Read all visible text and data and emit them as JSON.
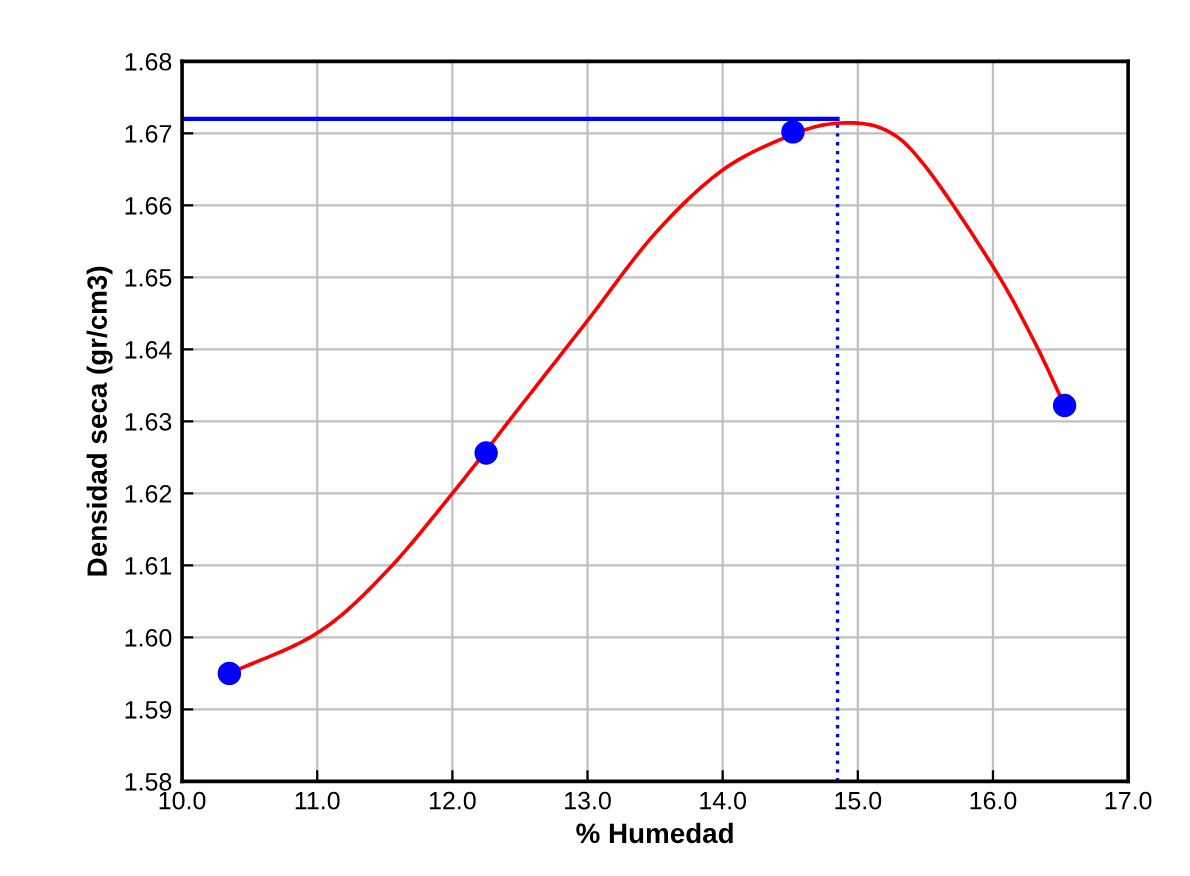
{
  "chart_data": {
    "type": "scatter",
    "xlabel": "% Humedad",
    "ylabel": "Densidad seca (gr/cm3)",
    "xlim": [
      10,
      17
    ],
    "xticks": [
      {
        "value": 10,
        "label": "10.0"
      },
      {
        "value": 11,
        "label": "11.0"
      },
      {
        "value": 12,
        "label": "12.0"
      },
      {
        "value": 13,
        "label": "13.0"
      },
      {
        "value": 14,
        "label": "14.0"
      },
      {
        "value": 15,
        "label": "15.0"
      },
      {
        "value": 16,
        "label": "16.0"
      },
      {
        "value": 17,
        "label": "17.0"
      }
    ],
    "ylim": [
      1.58,
      1.68
    ],
    "yticks": [
      {
        "value": 1.58,
        "label": "1.58"
      },
      {
        "value": 1.59,
        "label": "1.59"
      },
      {
        "value": 1.6,
        "label": "1.60"
      },
      {
        "value": 1.61,
        "label": "1.61"
      },
      {
        "value": 1.62,
        "label": "1.62"
      },
      {
        "value": 1.63,
        "label": "1.63"
      },
      {
        "value": 1.64,
        "label": "1.64"
      },
      {
        "value": 1.65,
        "label": "1.65"
      },
      {
        "value": 1.66,
        "label": "1.66"
      },
      {
        "value": 1.67,
        "label": "1.67"
      },
      {
        "value": 1.68,
        "label": "1.68"
      }
    ],
    "grid": true,
    "legend": false,
    "series": [
      {
        "type": "line",
        "color": "#ff0000",
        "marker": "none",
        "line_style": "solid",
        "x": [
          10.35,
          11.0,
          11.5,
          12.0,
          12.5,
          13.0,
          13.5,
          14.0,
          14.5,
          14.85,
          15.2,
          15.5,
          16.0,
          16.3,
          16.53
        ],
        "values": [
          1.595,
          1.6006,
          1.6089,
          1.62,
          1.632,
          1.644,
          1.6561,
          1.6649,
          1.6697,
          1.6714,
          1.6705,
          1.6654,
          1.6515,
          1.6413,
          1.6322
        ]
      },
      {
        "color": "#0000ff",
        "marker": "circle",
        "x": [
          10.35,
          12.25,
          14.52,
          16.53
        ],
        "values": [
          1.595,
          1.6256,
          1.6702,
          1.6322
        ]
      }
    ],
    "ref_lines": [
      {
        "axis": "y",
        "value": 1.672,
        "color": "#0000ff",
        "line_style": "solid"
      },
      {
        "axis": "x",
        "value": 14.85,
        "color": "#0000ff",
        "line_style": "dotted"
      }
    ]
  }
}
